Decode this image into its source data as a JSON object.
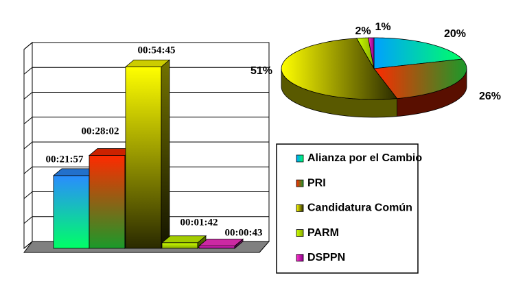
{
  "chart_data": [
    {
      "type": "bar3d",
      "categories": [
        null,
        null,
        null,
        null,
        null
      ],
      "values": [
        1317,
        1682,
        3285,
        102,
        43
      ],
      "value_labels": [
        "00:21:57",
        "00:28:02",
        "00:54:45",
        "00:01:42",
        "00:00:43"
      ],
      "colors": [
        "#2a8cff",
        "#ff2a00",
        "#ffff00",
        "#ccff00",
        "#ff33cc"
      ],
      "ylim": [
        0,
        3600
      ],
      "yticks": [
        0,
        450,
        900,
        1350,
        1800,
        2250,
        2700,
        3150,
        3600
      ],
      "grid": true
    },
    {
      "type": "pie3d",
      "categories": [
        "Alianza por el Cambio",
        "PRI",
        "Candidatura Común",
        "PARM",
        "DSPPN"
      ],
      "values": [
        20,
        26,
        51,
        2,
        1
      ],
      "value_labels": [
        "20%",
        "26%",
        "51%",
        "2%",
        "1%"
      ],
      "colors": [
        "#00a0ff",
        "#ff2a00",
        "#ffff00",
        "#ccff00",
        "#ff33cc"
      ]
    }
  ]
}
